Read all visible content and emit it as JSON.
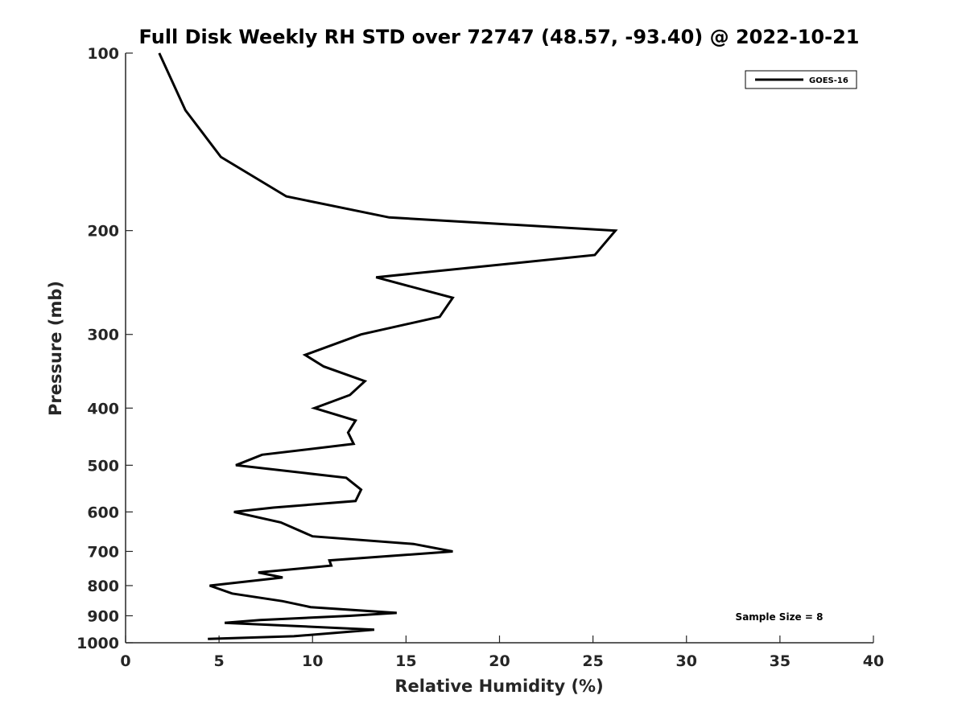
{
  "chart_data": {
    "type": "line",
    "title": "Full Disk Weekly RH STD over 72747 (48.57, -93.40) @ 2022-10-21",
    "xlabel": "Relative Humidity (%)",
    "ylabel": "Pressure (mb)",
    "xlim": [
      0,
      40
    ],
    "ylim": [
      100,
      1000
    ],
    "y_scale": "log",
    "y_reversed": true,
    "x_ticks": [
      "0",
      "5",
      "10",
      "15",
      "20",
      "25",
      "30",
      "35",
      "40"
    ],
    "y_ticks": [
      "100",
      "200",
      "300",
      "400",
      "500",
      "600",
      "700",
      "800",
      "900",
      "1000"
    ],
    "legend": {
      "position": "top-right",
      "entries": [
        "GOES-16"
      ]
    },
    "annotation": "Sample Size = 8",
    "series": [
      {
        "name": "GOES-16",
        "color": "#000000",
        "points": [
          [
            1.8,
            100
          ],
          [
            3.2,
            125
          ],
          [
            5.1,
            150
          ],
          [
            8.6,
            175
          ],
          [
            14.1,
            190
          ],
          [
            26.2,
            200
          ],
          [
            25.1,
            220
          ],
          [
            13.4,
            240
          ],
          [
            17.5,
            260
          ],
          [
            16.8,
            280
          ],
          [
            12.6,
            300
          ],
          [
            9.6,
            325
          ],
          [
            10.6,
            340
          ],
          [
            12.8,
            360
          ],
          [
            12.0,
            380
          ],
          [
            10.1,
            400
          ],
          [
            12.3,
            420
          ],
          [
            11.9,
            440
          ],
          [
            12.2,
            460
          ],
          [
            7.3,
            480
          ],
          [
            5.9,
            500
          ],
          [
            11.8,
            525
          ],
          [
            12.6,
            550
          ],
          [
            12.3,
            575
          ],
          [
            7.9,
            590
          ],
          [
            5.8,
            600
          ],
          [
            8.3,
            625
          ],
          [
            10.0,
            660
          ],
          [
            15.4,
            680
          ],
          [
            17.5,
            700
          ],
          [
            10.9,
            725
          ],
          [
            11.0,
            740
          ],
          [
            7.1,
            760
          ],
          [
            8.4,
            775
          ],
          [
            4.5,
            800
          ],
          [
            5.7,
            825
          ],
          [
            8.4,
            850
          ],
          [
            9.9,
            870
          ],
          [
            14.5,
            890
          ],
          [
            12.0,
            900
          ],
          [
            7.2,
            915
          ],
          [
            5.3,
            925
          ],
          [
            13.3,
            950
          ],
          [
            9.0,
            975
          ],
          [
            4.4,
            985
          ]
        ]
      }
    ]
  }
}
